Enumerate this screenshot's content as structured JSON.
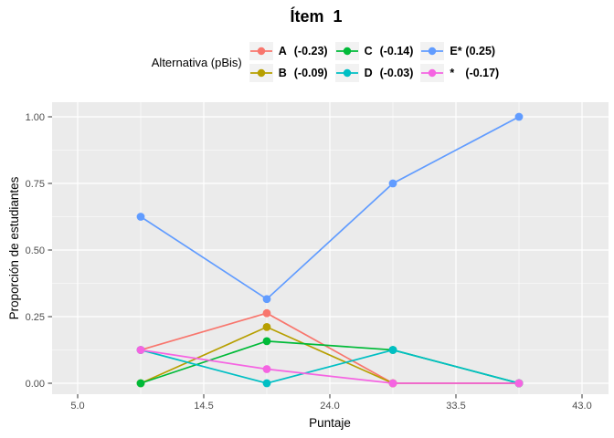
{
  "title": "Ítem  1",
  "legend": {
    "title": "Alternativa (pBis)",
    "entries": [
      {
        "name": "A",
        "pbis": "(-0.23)",
        "color": "#F8766D"
      },
      {
        "name": "B",
        "pbis": "(-0.09)",
        "color": "#B79F00"
      },
      {
        "name": "C",
        "pbis": "(-0.14)",
        "color": "#00BA38"
      },
      {
        "name": "D",
        "pbis": "(-0.03)",
        "color": "#00BFC4"
      },
      {
        "name": "E*",
        "pbis": "(0.25)",
        "color": "#619CFF"
      },
      {
        "name": "*",
        "pbis": "(-0.17)",
        "color": "#F564E2"
      }
    ]
  },
  "axes": {
    "x": {
      "label": "Puntaje",
      "ticks": [
        5.0,
        14.5,
        24.0,
        33.5,
        43.0
      ],
      "tick_labels": [
        "5.0",
        "14.5",
        "24.0",
        "33.5",
        "43.0"
      ]
    },
    "y": {
      "label": "Proporción de estudiantes",
      "ticks": [
        0.0,
        0.25,
        0.5,
        0.75,
        1.0
      ],
      "tick_labels": [
        "0.00",
        "0.25",
        "0.50",
        "0.75",
        "1.00"
      ]
    }
  },
  "chart_data": {
    "type": "line",
    "title": "Ítem 1",
    "subtitle": "",
    "xlabel": "Puntaje",
    "ylabel": "Proporción de estudiantes",
    "legend_title": "Alternativa (pBis)",
    "legend_position": "top",
    "grid": true,
    "panel_background": "#EBEBEB",
    "gridline_color": "#FFFFFF",
    "x": [
      9.75,
      19.25,
      28.75,
      38.25
    ],
    "xlim": [
      3.0,
      45.0
    ],
    "ylim": [
      -0.04,
      1.05
    ],
    "x_ticks": [
      5.0,
      14.5,
      24.0,
      33.5,
      43.0
    ],
    "y_ticks": [
      0.0,
      0.25,
      0.5,
      0.75,
      1.0
    ],
    "series": [
      {
        "name": "A (-0.23)",
        "color": "#F8766D",
        "values": [
          0.125,
          0.263,
          0.0,
          0.0
        ]
      },
      {
        "name": "B (-0.09)",
        "color": "#B79F00",
        "values": [
          0.0,
          0.211,
          0.0,
          0.0
        ]
      },
      {
        "name": "C (-0.14)",
        "color": "#00BA38",
        "values": [
          0.0,
          0.158,
          0.125,
          0.0
        ]
      },
      {
        "name": "D (-0.03)",
        "color": "#00BFC4",
        "values": [
          0.125,
          0.0,
          0.125,
          0.0
        ]
      },
      {
        "name": "E* (0.25)",
        "color": "#619CFF",
        "values": [
          0.625,
          0.316,
          0.75,
          1.0
        ]
      },
      {
        "name": "* (-0.17)",
        "color": "#F564E2",
        "values": [
          0.125,
          0.053,
          0.0,
          0.0
        ]
      }
    ]
  }
}
